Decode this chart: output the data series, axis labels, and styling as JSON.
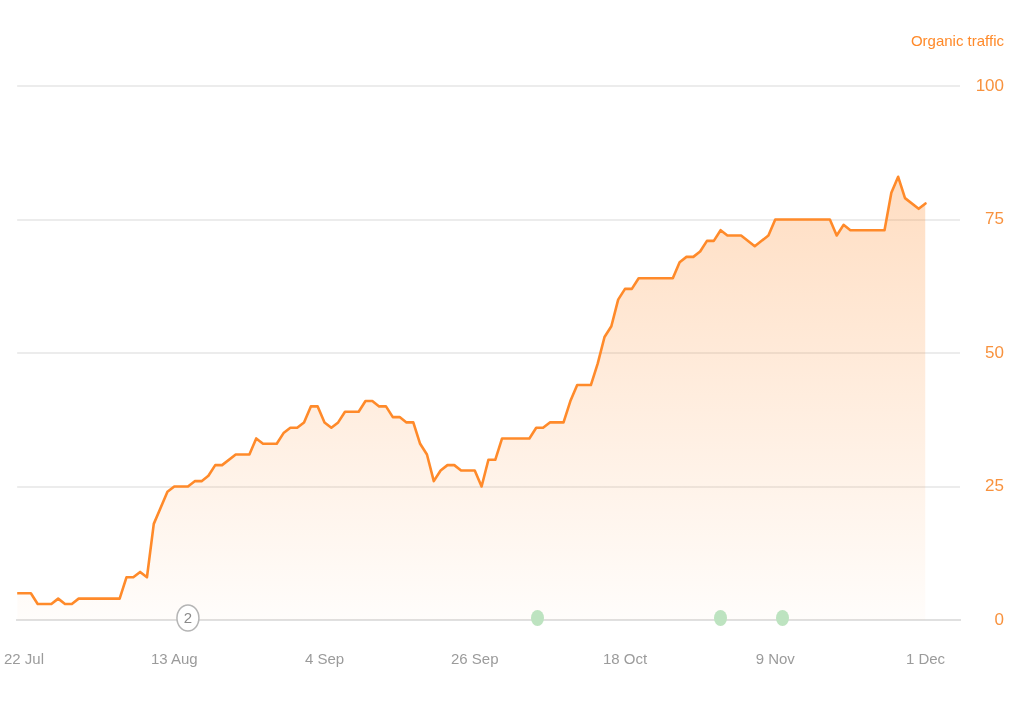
{
  "chart_data": {
    "type": "area",
    "ylabel": "Organic traffic",
    "x": [
      "--07-21",
      "--07-23",
      "--07-24",
      "--07-26",
      "--07-27",
      "--07-28",
      "--07-29",
      "--07-30",
      "--08-05",
      "--08-06",
      "--08-07",
      "--08-08",
      "--08-09",
      "--08-10",
      "--08-12",
      "--08-13",
      "--08-15",
      "--08-16",
      "--08-17",
      "--08-18",
      "--08-19",
      "--08-20",
      "--08-22",
      "--08-24",
      "--08-25",
      "--08-26",
      "--08-28",
      "--08-29",
      "--08-30",
      "--08-31",
      "--09-01",
      "--09-02",
      "--09-03",
      "--09-04",
      "--09-05",
      "--09-06",
      "--09-07",
      "--09-09",
      "--09-10",
      "--09-11",
      "--09-12",
      "--09-13",
      "--09-14",
      "--09-15",
      "--09-16",
      "--09-17",
      "--09-18",
      "--09-19",
      "--09-20",
      "--09-21",
      "--09-22",
      "--09-23",
      "--09-24",
      "--09-26",
      "--09-27",
      "--09-28",
      "--09-29",
      "--09-30",
      "--10-04",
      "--10-05",
      "--10-06",
      "--10-07",
      "--10-09",
      "--10-10",
      "--10-11",
      "--10-13",
      "--10-14",
      "--10-15",
      "--10-16",
      "--10-17",
      "--10-18",
      "--10-19",
      "--10-20",
      "--10-25",
      "--10-26",
      "--10-27",
      "--10-28",
      "--10-29",
      "--10-30",
      "--10-31",
      "--11-01",
      "--11-02",
      "--11-04",
      "--11-06",
      "--11-08",
      "--11-09",
      "--11-17",
      "--11-18",
      "--11-19",
      "--11-20",
      "--11-25",
      "--11-26",
      "--11-27",
      "--11-28",
      "--11-30",
      "--12-01"
    ],
    "series": [
      {
        "color": "#ff8a2a",
        "values": [
          5,
          5,
          3,
          3,
          4,
          3,
          3,
          4,
          4,
          8,
          8,
          9,
          8,
          18,
          24,
          25,
          25,
          26,
          26,
          27,
          29,
          29,
          31,
          31,
          34,
          33,
          33,
          35,
          36,
          36,
          37,
          40,
          40,
          37,
          36,
          37,
          39,
          39,
          41,
          41,
          40,
          40,
          38,
          38,
          37,
          37,
          33,
          31,
          26,
          28,
          29,
          29,
          28,
          28,
          25,
          30,
          30,
          34,
          34,
          36,
          36,
          37,
          37,
          41,
          44,
          44,
          48,
          53,
          55,
          60,
          62,
          62,
          64,
          64,
          67,
          68,
          68,
          69,
          71,
          71,
          73,
          72,
          72,
          70,
          72,
          75,
          75,
          72,
          74,
          73,
          73,
          80,
          83,
          79,
          77,
          78
        ]
      }
    ],
    "xlim": [
      "--07-21",
      "--12-06"
    ],
    "xticks": [
      {
        "value": "--07-22",
        "label": "22 Jul"
      },
      {
        "value": "--08-13",
        "label": "13 Aug"
      },
      {
        "value": "--09-04",
        "label": "4 Sep"
      },
      {
        "value": "--09-26",
        "label": "26 Sep"
      },
      {
        "value": "--10-18",
        "label": "18 Oct"
      },
      {
        "value": "--11-09",
        "label": "9 Nov"
      },
      {
        "value": "--12-01",
        "label": "1 Dec"
      }
    ],
    "ylim": [
      0,
      100
    ],
    "yticks": [
      0,
      25,
      50,
      75,
      100
    ],
    "grid": "y",
    "annotations": [
      {
        "text": "2",
        "x": "--08-15",
        "y": 0
      }
    ]
  }
}
